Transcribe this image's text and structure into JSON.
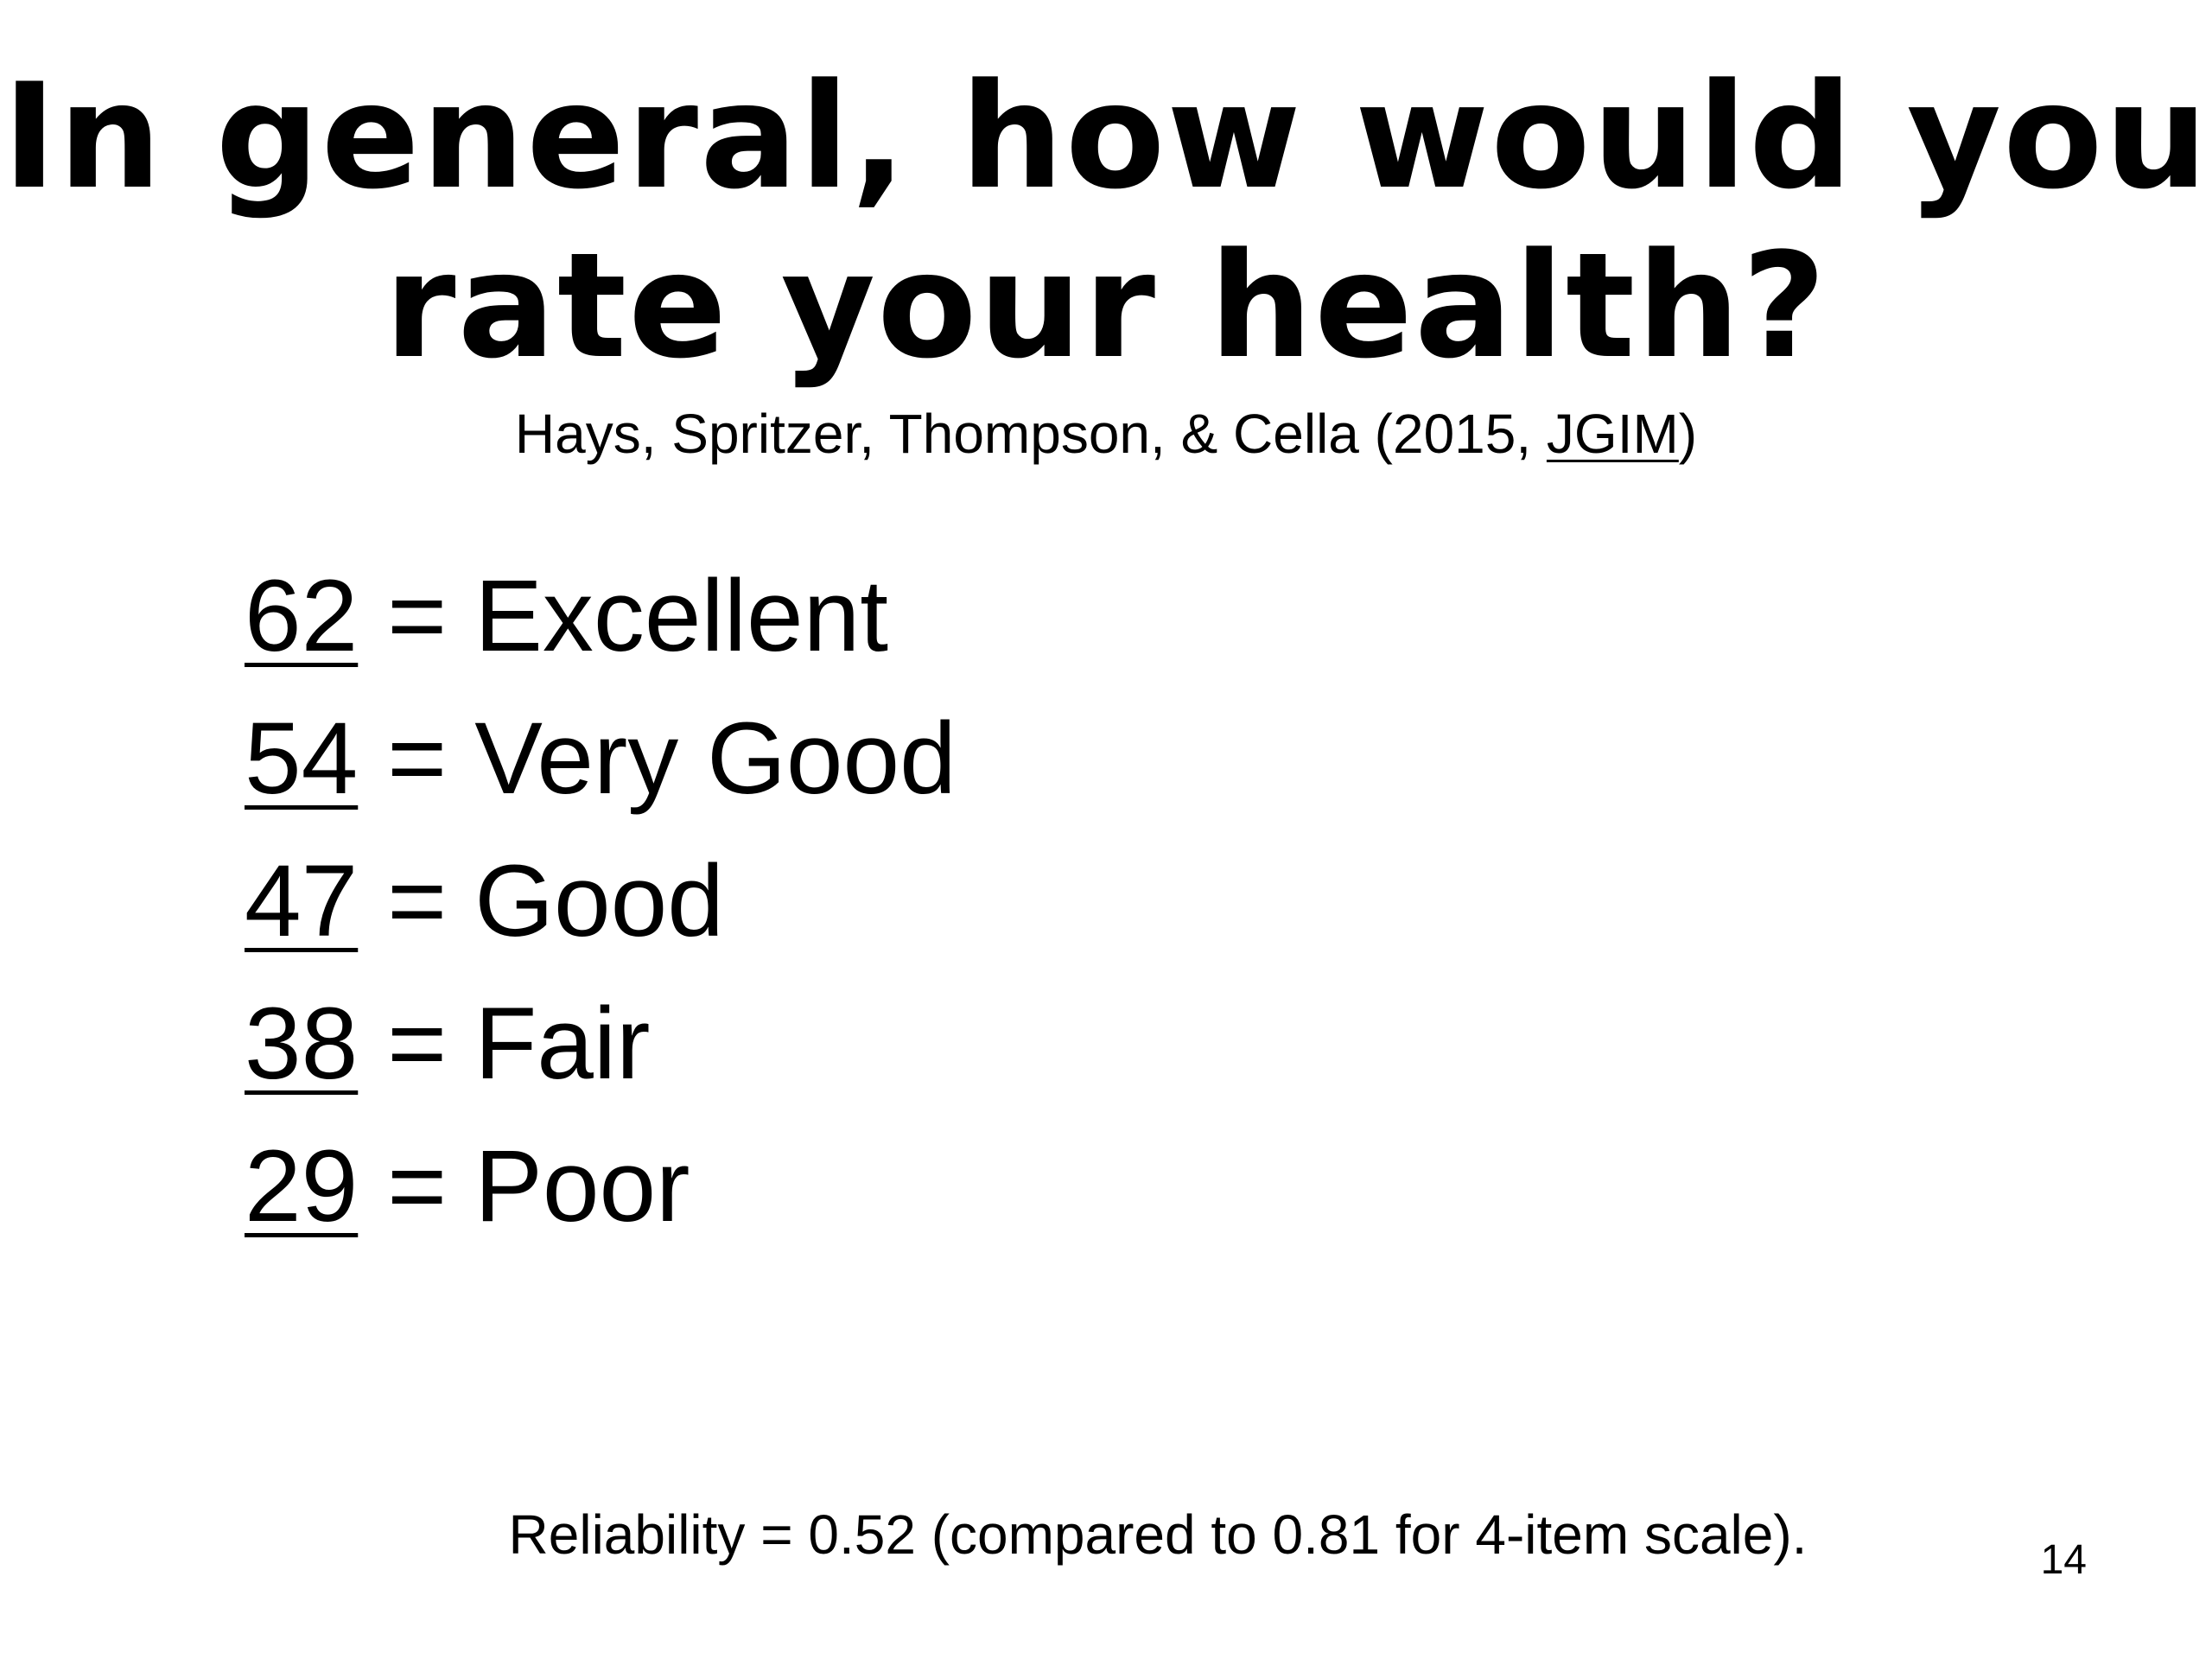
{
  "slide": {
    "title_line1": "In general, how would you",
    "title_line2": "rate your health?",
    "citation": {
      "prefix": "Hays, Spritzer, Thompson, & Cella (2015, ",
      "journal": "JGIM",
      "suffix": ")"
    },
    "ratings": [
      {
        "score": "62",
        "equals": "=",
        "label": "Excellent"
      },
      {
        "score": "54",
        "equals": "=",
        "label": "Very Good"
      },
      {
        "score": "47",
        "equals": "=",
        "label": "Good"
      },
      {
        "score": "38",
        "equals": "=",
        "label": "Fair"
      },
      {
        "score": "29",
        "equals": "=",
        "label": "Poor"
      }
    ],
    "footnote": "Reliability = 0.52 (compared to 0.81 for 4-item scale).",
    "page_number": "14"
  }
}
